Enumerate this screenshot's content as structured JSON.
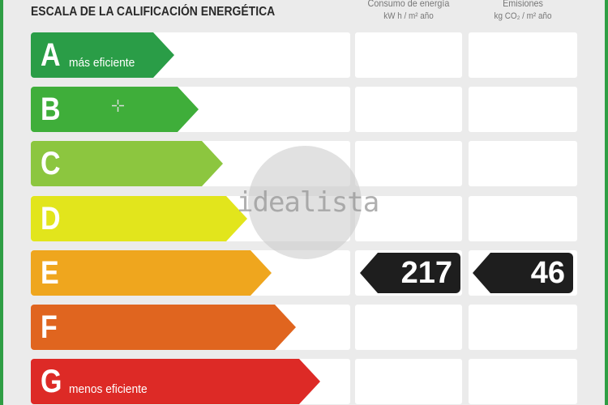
{
  "title": "ESCALA DE LA CALIFICACIÓN ENERGÉTICA",
  "columns": {
    "energy": {
      "label": "Consumo de energía",
      "unit": "kW h / m² año"
    },
    "emissions": {
      "label": "Emisiones",
      "unit": "kg CO₂ / m² año"
    }
  },
  "ratings": [
    {
      "letter": "A",
      "note": "más eficiente",
      "color": "#2a9d47"
    },
    {
      "letter": "B",
      "note": "",
      "color": "#3fae3a"
    },
    {
      "letter": "C",
      "note": "",
      "color": "#8cc63f"
    },
    {
      "letter": "D",
      "note": "",
      "color": "#e2e51c"
    },
    {
      "letter": "E",
      "note": "",
      "color": "#efa61e"
    },
    {
      "letter": "F",
      "note": "",
      "color": "#e0651f"
    },
    {
      "letter": "G",
      "note": "menos eficiente",
      "color": "#dd2a26"
    }
  ],
  "current": {
    "rating": "E",
    "energy": "217",
    "emissions": "46"
  },
  "watermark": "idealista",
  "border_color": "#2f9e44"
}
